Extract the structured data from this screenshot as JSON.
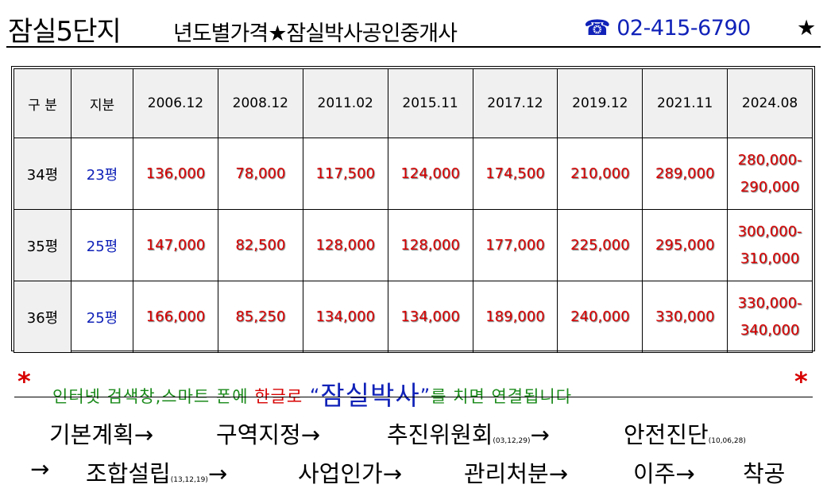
{
  "header": {
    "title_main": "잠실5단지",
    "title_rest": "년도별가격★잠실박사공인중개사",
    "phone": "☎ 02-415-6790",
    "phone_star": "★"
  },
  "table": {
    "corner_label": "구 분",
    "share_label": "지분",
    "dates": [
      "2006.12",
      "2008.12",
      "2011.02",
      "2015.11",
      "2017.12",
      "2019.12",
      "2021.11",
      "2024.08"
    ],
    "rows": [
      {
        "size": "34평",
        "share": "23평",
        "prices": [
          "136,000",
          "78,000",
          "117,500",
          "124,000",
          "174,500",
          "210,000",
          "289,000"
        ],
        "latest": [
          "280,000-",
          "290,000"
        ]
      },
      {
        "size": "35평",
        "share": "25평",
        "prices": [
          "147,000",
          "82,500",
          "128,000",
          "128,000",
          "177,000",
          "225,000",
          "295,000"
        ],
        "latest": [
          "300,000-",
          "310,000"
        ]
      },
      {
        "size": "36평",
        "share": "25평",
        "prices": [
          "166,000",
          "85,250",
          "134,000",
          "134,000",
          "189,000",
          "240,000",
          "330,000"
        ],
        "latest": [
          "330,000-",
          "340,000"
        ]
      }
    ]
  },
  "notice": {
    "asterisk": "*",
    "part1": "인터넷 검색창,스마트 폰에 ",
    "part2": "한글로",
    "open_quote": " “",
    "keyword": "잠실박사",
    "close_quote": "”",
    "part3": "를 치면 연결됩니다"
  },
  "steps": {
    "s1": "기본계획→",
    "s2": "구역지정→",
    "s3": "추진위원회",
    "s3_date": "(03,12,29)",
    "s3_arrow": "→",
    "s4": "안전진단",
    "s4_date": "(10,06,28)",
    "s5": "→",
    "s6": "조합설립",
    "s6_date": "(13,12,19)",
    "s6_arrow": "→",
    "s7": "사업인가→",
    "s8": "관리처분→",
    "s9": "이주→",
    "s10": "착공"
  },
  "colors": {
    "price": "#d80000",
    "share": "#1022b8",
    "notice": "#1a8a1a",
    "header_fill": "#f0f0f0"
  }
}
